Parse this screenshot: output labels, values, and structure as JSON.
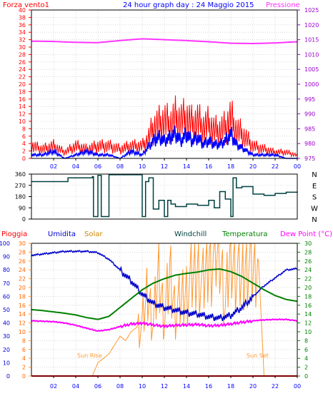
{
  "header": {
    "left": "Forza vento1",
    "center": "24 hour graph day : 24 Maggio 2015",
    "right": "Pressione"
  },
  "legend": {
    "pioggia": "Pioggia",
    "umidita": "Umidita",
    "solar": "Solar",
    "windchill": "Windchill",
    "temperatura": "Temperatura",
    "dewpoint": "Dew Point (°C)"
  },
  "annotations": {
    "sunrise": "Sun Rise",
    "sunset": "Sun Set"
  },
  "colors": {
    "wind_gust": "#ff0000",
    "wind_avg": "#0000ff",
    "pressure": "#ff33ff",
    "direction": "#004040",
    "humidity": "#0000cc",
    "solar": "#ff9933",
    "temperature": "#008000",
    "dewpoint": "#ff00ff",
    "rain": "#ff0000",
    "frame": "#000000",
    "grid": "#c0c0c0"
  },
  "chart_data": [
    {
      "type": "line",
      "series": [
        {
          "name": "Forza vento1",
          "x": [
            0,
            1,
            2,
            3,
            4,
            5,
            6,
            7,
            8,
            9,
            10,
            10.5,
            11,
            11.5,
            12,
            12.5,
            13,
            13.5,
            14,
            14.5,
            15,
            15.5,
            16,
            16.5,
            17,
            17.5,
            18,
            18.5,
            19,
            19.5,
            20,
            21,
            22,
            23,
            24
          ],
          "values": [
            4,
            3,
            4,
            2,
            4,
            3,
            4,
            4,
            3,
            4,
            4,
            6,
            10,
            11,
            12,
            11,
            13,
            12,
            13,
            11,
            12,
            10,
            11,
            9,
            9,
            10,
            13,
            9,
            8,
            6,
            4,
            3,
            2,
            2,
            1
          ]
        },
        {
          "name": "",
          "x": [
            0,
            1,
            2,
            3,
            4,
            5,
            6,
            7,
            8,
            9,
            10,
            10.5,
            11,
            11.5,
            12,
            12.5,
            13,
            13.5,
            14,
            14.5,
            15,
            15.5,
            16,
            16.5,
            17,
            17.5,
            18,
            18.5,
            19,
            19.5,
            20,
            21,
            22,
            23,
            24
          ],
          "values": [
            1,
            1,
            2,
            0,
            1,
            2,
            1,
            1,
            0,
            2,
            1,
            3,
            5,
            6,
            5,
            6,
            7,
            5,
            7,
            5,
            6,
            4,
            5,
            4,
            4,
            5,
            7,
            4,
            3,
            2,
            1,
            1,
            1,
            0,
            0
          ]
        },
        {
          "name": "Pressione",
          "x": [
            0,
            2,
            4,
            6,
            8,
            10,
            12,
            14,
            16,
            18,
            20,
            22,
            24
          ],
          "values": [
            1014.5,
            1014.4,
            1014.1,
            1014.0,
            1014.7,
            1015.3,
            1015.0,
            1014.7,
            1014.3,
            1013.8,
            1013.7,
            1013.9,
            1014.3
          ]
        }
      ],
      "xticks": [
        "02",
        "04",
        "06",
        "08",
        "10",
        "12",
        "14",
        "16",
        "18",
        "20",
        "22",
        "00"
      ],
      "yticks_left": [
        0,
        2,
        4,
        6,
        8,
        10,
        12,
        14,
        16,
        18,
        20,
        22,
        24,
        26,
        28,
        30,
        32,
        34,
        36,
        38,
        40
      ],
      "yticks_right": [
        975,
        980,
        985,
        990,
        995,
        1000,
        1005,
        1010,
        1015,
        1020,
        1025
      ],
      "ylim_left": [
        0,
        40
      ],
      "ylim_right": [
        975,
        1025
      ]
    },
    {
      "type": "line",
      "series": [
        {
          "name": "",
          "x": [
            0,
            3,
            3.3,
            5.5,
            5.6,
            5.8,
            6,
            6.3,
            6.5,
            7,
            7.5,
            8.5,
            9.5,
            10,
            10.3,
            10.6,
            11,
            11.5,
            12,
            12.3,
            12.6,
            13,
            14,
            15,
            16,
            16.5,
            17,
            17.5,
            18,
            18.2,
            18.5,
            19,
            20,
            21,
            22,
            23,
            24
          ],
          "values": [
            300,
            300,
            330,
            340,
            20,
            20,
            350,
            20,
            20,
            355,
            355,
            355,
            355,
            20,
            300,
            330,
            80,
            150,
            20,
            150,
            120,
            100,
            120,
            110,
            150,
            90,
            220,
            160,
            20,
            330,
            250,
            260,
            200,
            190,
            205,
            215,
            220
          ]
        }
      ],
      "yticks_left": [
        0,
        90,
        180,
        270,
        360
      ],
      "yticks_right": [
        "N",
        "W",
        "S",
        "E",
        "N"
      ],
      "ylim": [
        0,
        360
      ]
    },
    {
      "type": "line",
      "series": [
        {
          "name": "Umidita",
          "x": [
            0,
            1,
            2,
            3,
            4,
            5,
            6,
            7,
            8,
            9,
            10,
            11,
            12,
            13,
            14,
            15,
            16,
            17,
            18,
            19,
            20,
            21,
            22,
            23,
            24
          ],
          "values": [
            91,
            92,
            93,
            94,
            94,
            94,
            93,
            88,
            80,
            72,
            62,
            55,
            52,
            50,
            48,
            47,
            45,
            44,
            46,
            52,
            60,
            68,
            74,
            80,
            81
          ]
        },
        {
          "name": "Solar",
          "x": [
            0,
            5.5,
            6,
            7,
            8,
            8.5,
            9,
            10,
            10.5,
            11,
            11.5,
            12,
            12.5,
            13,
            14,
            15,
            15.5,
            16,
            17,
            17.5,
            18,
            18.5,
            19,
            19.5,
            20,
            20.5,
            21
          ],
          "values": [
            0,
            0,
            3,
            5,
            9,
            8,
            10,
            12,
            20,
            12,
            25,
            13,
            24,
            15,
            20,
            25,
            21,
            28,
            30,
            16,
            29,
            25,
            22,
            28,
            24,
            26,
            0
          ]
        },
        {
          "name": "Temperatura",
          "x": [
            0,
            1,
            2,
            3,
            4,
            5,
            6,
            7,
            8,
            9,
            10,
            11,
            12,
            13,
            14,
            15,
            16,
            17,
            18,
            19,
            20,
            21,
            22,
            23,
            24
          ],
          "values": [
            15,
            14.8,
            14.5,
            14.2,
            13.8,
            13.2,
            12.8,
            13.5,
            15.5,
            17.5,
            19.5,
            21,
            22,
            22.8,
            23.2,
            23.5,
            24,
            24.2,
            23.6,
            22.5,
            21,
            19.5,
            18.2,
            17.3,
            16.9
          ]
        },
        {
          "name": "Dew Point (°C)",
          "x": [
            0,
            1,
            2,
            3,
            4,
            5,
            6,
            7,
            8,
            9,
            10,
            11,
            12,
            13,
            14,
            15,
            16,
            17,
            18,
            19,
            20,
            21,
            22,
            23,
            24
          ],
          "values": [
            12.5,
            12.4,
            12.3,
            12,
            11.5,
            10.8,
            10.2,
            10.5,
            11.2,
            11.8,
            12,
            11.6,
            11.3,
            11.5,
            11.6,
            11.7,
            11.4,
            11.5,
            11.8,
            12.2,
            12.5,
            12.7,
            12.8,
            12.8,
            12.5
          ]
        },
        {
          "name": "Pioggia",
          "x": [
            0,
            24
          ],
          "values": [
            0,
            0
          ]
        }
      ],
      "yticks_left": [
        0,
        10,
        20,
        30,
        40,
        50,
        60,
        70,
        80,
        90,
        100
      ],
      "yticks_left_inner": [
        0,
        2,
        4,
        6,
        8,
        10,
        12,
        14,
        16,
        18,
        20,
        22,
        24,
        26,
        28,
        30
      ],
      "yticks_right": [
        0,
        2,
        4,
        6,
        8,
        10,
        12,
        14,
        16,
        18,
        20,
        22,
        24,
        26,
        28,
        30
      ],
      "ylim_humidity": [
        0,
        100
      ],
      "ylim_temp": [
        0,
        30
      ]
    }
  ]
}
